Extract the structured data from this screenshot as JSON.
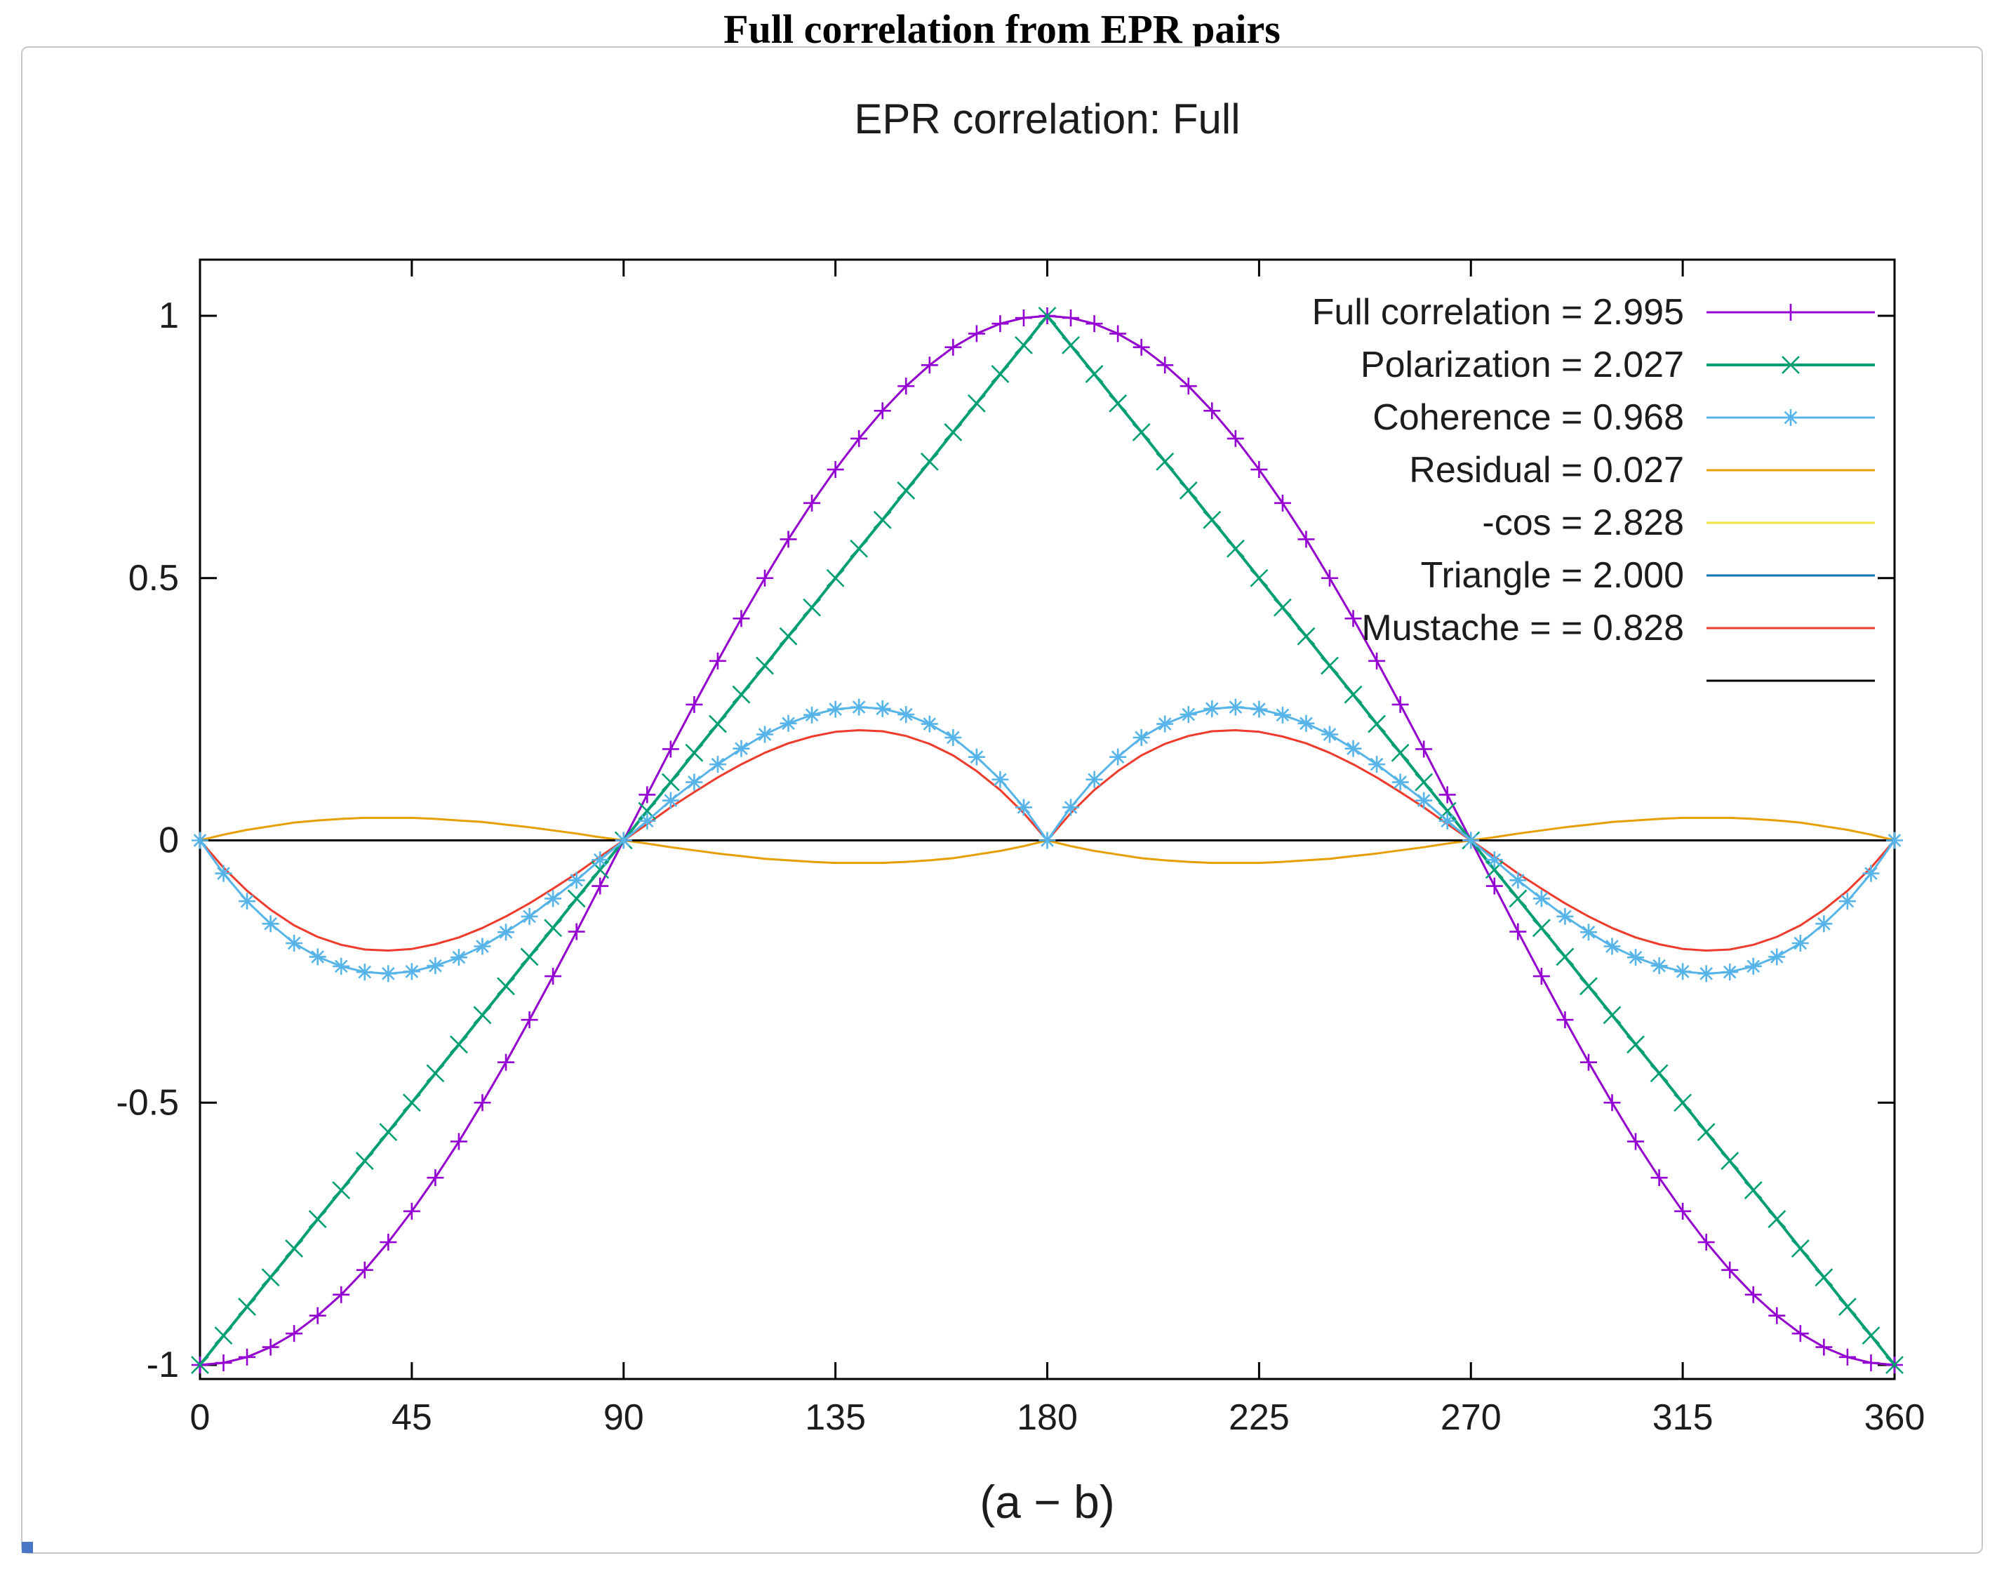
{
  "page": {
    "title": "Full correlation from EPR pairs"
  },
  "chart_data": {
    "type": "line",
    "title": "EPR correlation: Full",
    "xlabel": "(a − b)",
    "xlim": [
      0,
      360
    ],
    "ylim": [
      -1,
      1
    ],
    "x_ticks": [
      0,
      45,
      90,
      135,
      180,
      225,
      270,
      315,
      360
    ],
    "y_ticks": [
      -1,
      -0.5,
      0,
      0.5,
      1
    ],
    "legend_position": "top-right-inside",
    "x_deg": [
      0,
      5,
      10,
      15,
      20,
      25,
      30,
      35,
      40,
      45,
      50,
      55,
      60,
      65,
      70,
      75,
      80,
      85,
      90,
      95,
      100,
      105,
      110,
      115,
      120,
      125,
      130,
      135,
      140,
      145,
      150,
      155,
      160,
      165,
      170,
      175,
      180,
      185,
      190,
      195,
      200,
      205,
      210,
      215,
      220,
      225,
      230,
      235,
      240,
      245,
      250,
      255,
      260,
      265,
      270,
      275,
      280,
      285,
      290,
      295,
      300,
      305,
      310,
      315,
      320,
      325,
      330,
      335,
      340,
      345,
      350,
      355,
      360
    ],
    "curves": {
      "neg_cos": [
        -1,
        -0.996,
        -0.985,
        -0.966,
        -0.94,
        -0.906,
        -0.866,
        -0.819,
        -0.766,
        -0.707,
        -0.643,
        -0.574,
        -0.5,
        -0.423,
        -0.342,
        -0.259,
        -0.174,
        -0.087,
        0,
        0.087,
        0.174,
        0.259,
        0.342,
        0.423,
        0.5,
        0.574,
        0.643,
        0.707,
        0.766,
        0.819,
        0.866,
        0.906,
        0.94,
        0.966,
        0.985,
        0.996,
        1,
        0.996,
        0.985,
        0.966,
        0.94,
        0.906,
        0.866,
        0.819,
        0.766,
        0.707,
        0.643,
        0.574,
        0.5,
        0.423,
        0.342,
        0.259,
        0.174,
        0.087,
        0,
        -0.087,
        -0.174,
        -0.259,
        -0.342,
        -0.423,
        -0.5,
        -0.574,
        -0.643,
        -0.707,
        -0.766,
        -0.819,
        -0.866,
        -0.906,
        -0.94,
        -0.966,
        -0.985,
        -0.996,
        -1
      ],
      "triangle": [
        -1,
        -0.944,
        -0.889,
        -0.833,
        -0.778,
        -0.722,
        -0.667,
        -0.611,
        -0.556,
        -0.5,
        -0.444,
        -0.389,
        -0.333,
        -0.278,
        -0.222,
        -0.167,
        -0.111,
        -0.056,
        0,
        0.056,
        0.111,
        0.167,
        0.222,
        0.278,
        0.333,
        0.389,
        0.444,
        0.5,
        0.556,
        0.611,
        0.667,
        0.722,
        0.778,
        0.833,
        0.889,
        0.944,
        1,
        0.944,
        0.889,
        0.833,
        0.778,
        0.722,
        0.667,
        0.611,
        0.556,
        0.5,
        0.444,
        0.389,
        0.333,
        0.278,
        0.222,
        0.167,
        0.111,
        0.056,
        0,
        -0.056,
        -0.111,
        -0.167,
        -0.222,
        -0.278,
        -0.333,
        -0.389,
        -0.444,
        -0.5,
        -0.556,
        -0.611,
        -0.667,
        -0.722,
        -0.778,
        -0.833,
        -0.889,
        -0.944,
        -1
      ],
      "mustache": [
        0,
        -0.052,
        -0.096,
        -0.132,
        -0.162,
        -0.184,
        -0.199,
        -0.208,
        -0.21,
        -0.207,
        -0.198,
        -0.185,
        -0.167,
        -0.145,
        -0.12,
        -0.092,
        -0.063,
        -0.031,
        0,
        0.031,
        0.063,
        0.092,
        0.12,
        0.145,
        0.167,
        0.185,
        0.198,
        0.207,
        0.21,
        0.208,
        0.199,
        0.184,
        0.162,
        0.132,
        0.096,
        0.052,
        0,
        0.052,
        0.096,
        0.132,
        0.162,
        0.184,
        0.199,
        0.208,
        0.21,
        0.207,
        0.198,
        0.185,
        0.167,
        0.145,
        0.12,
        0.092,
        0.063,
        0.031,
        0,
        -0.031,
        -0.063,
        -0.092,
        -0.12,
        -0.145,
        -0.167,
        -0.185,
        -0.198,
        -0.207,
        -0.21,
        -0.208,
        -0.199,
        -0.184,
        -0.162,
        -0.132,
        -0.096,
        -0.052,
        0
      ],
      "coherence": [
        0,
        -0.063,
        -0.116,
        -0.159,
        -0.196,
        -0.222,
        -0.24,
        -0.251,
        -0.254,
        -0.25,
        -0.239,
        -0.223,
        -0.202,
        -0.175,
        -0.145,
        -0.111,
        -0.076,
        -0.037,
        0,
        0.037,
        0.076,
        0.111,
        0.145,
        0.175,
        0.202,
        0.223,
        0.239,
        0.25,
        0.254,
        0.251,
        0.24,
        0.222,
        0.196,
        0.159,
        0.116,
        0.063,
        0,
        0.063,
        0.116,
        0.159,
        0.196,
        0.222,
        0.24,
        0.251,
        0.254,
        0.25,
        0.239,
        0.223,
        0.202,
        0.175,
        0.145,
        0.111,
        0.076,
        0.037,
        0,
        -0.037,
        -0.076,
        -0.111,
        -0.145,
        -0.175,
        -0.202,
        -0.223,
        -0.239,
        -0.25,
        -0.254,
        -0.251,
        -0.24,
        -0.222,
        -0.196,
        -0.159,
        -0.116,
        -0.063,
        0
      ],
      "residual": [
        0,
        0.011,
        0.02,
        0.027,
        0.034,
        0.038,
        0.041,
        0.043,
        0.043,
        0.043,
        0.041,
        0.038,
        0.035,
        0.03,
        0.025,
        0.019,
        0.013,
        0.006,
        0,
        -0.006,
        -0.013,
        -0.019,
        -0.025,
        -0.03,
        -0.035,
        -0.038,
        -0.041,
        -0.043,
        -0.043,
        -0.043,
        -0.041,
        -0.038,
        -0.034,
        -0.027,
        -0.02,
        -0.011,
        0,
        -0.011,
        -0.02,
        -0.027,
        -0.034,
        -0.038,
        -0.041,
        -0.043,
        -0.043,
        -0.043,
        -0.041,
        -0.038,
        -0.035,
        -0.03,
        -0.025,
        -0.019,
        -0.013,
        -0.006,
        0,
        0.006,
        0.013,
        0.019,
        0.025,
        0.03,
        0.035,
        0.038,
        0.041,
        0.043,
        0.043,
        0.043,
        0.041,
        0.038,
        0.034,
        0.027,
        0.02,
        0.011,
        0
      ],
      "zero": 0
    },
    "series": [
      {
        "name": "full-correlation",
        "legend": "Full correlation = 2.995",
        "value": 2.995,
        "color": "#9400d3",
        "marker": "plus",
        "ref": "neg_cos",
        "lw": 3,
        "z": 7
      },
      {
        "name": "polarization",
        "legend": "Polarization = 2.027",
        "value": 2.027,
        "color": "#009e73",
        "marker": "times",
        "ref": "triangle",
        "lw": 4,
        "z": 8
      },
      {
        "name": "coherence",
        "legend": "Coherence = 0.968",
        "value": 0.968,
        "color": "#56b4e9",
        "marker": "star",
        "ref": "coherence",
        "lw": 3,
        "z": 9
      },
      {
        "name": "residual",
        "legend": "Residual = 0.027",
        "value": 0.027,
        "color": "#e69f00",
        "marker": "none",
        "ref": "residual",
        "lw": 3,
        "z": 2
      },
      {
        "name": "neg-cos",
        "legend": "-cos = 2.828",
        "value": 2.828,
        "color": "#f0e442",
        "marker": "none",
        "ref": "neg_cos",
        "lw": 3,
        "z": 3
      },
      {
        "name": "triangle",
        "legend": "Triangle = 2.000",
        "value": 2.0,
        "color": "#0072b2",
        "marker": "none",
        "ref": "triangle",
        "lw": 3,
        "z": 4
      },
      {
        "name": "mustache",
        "legend": "Mustache = = 0.828",
        "value": 0.828,
        "color": "#ef3b2c",
        "marker": "none",
        "ref": "mustache",
        "lw": 3,
        "z": 5
      },
      {
        "name": "zero-line",
        "legend": "",
        "color": "#000000",
        "marker": "none",
        "ref": "zero",
        "lw": 3,
        "z": 6
      }
    ]
  }
}
